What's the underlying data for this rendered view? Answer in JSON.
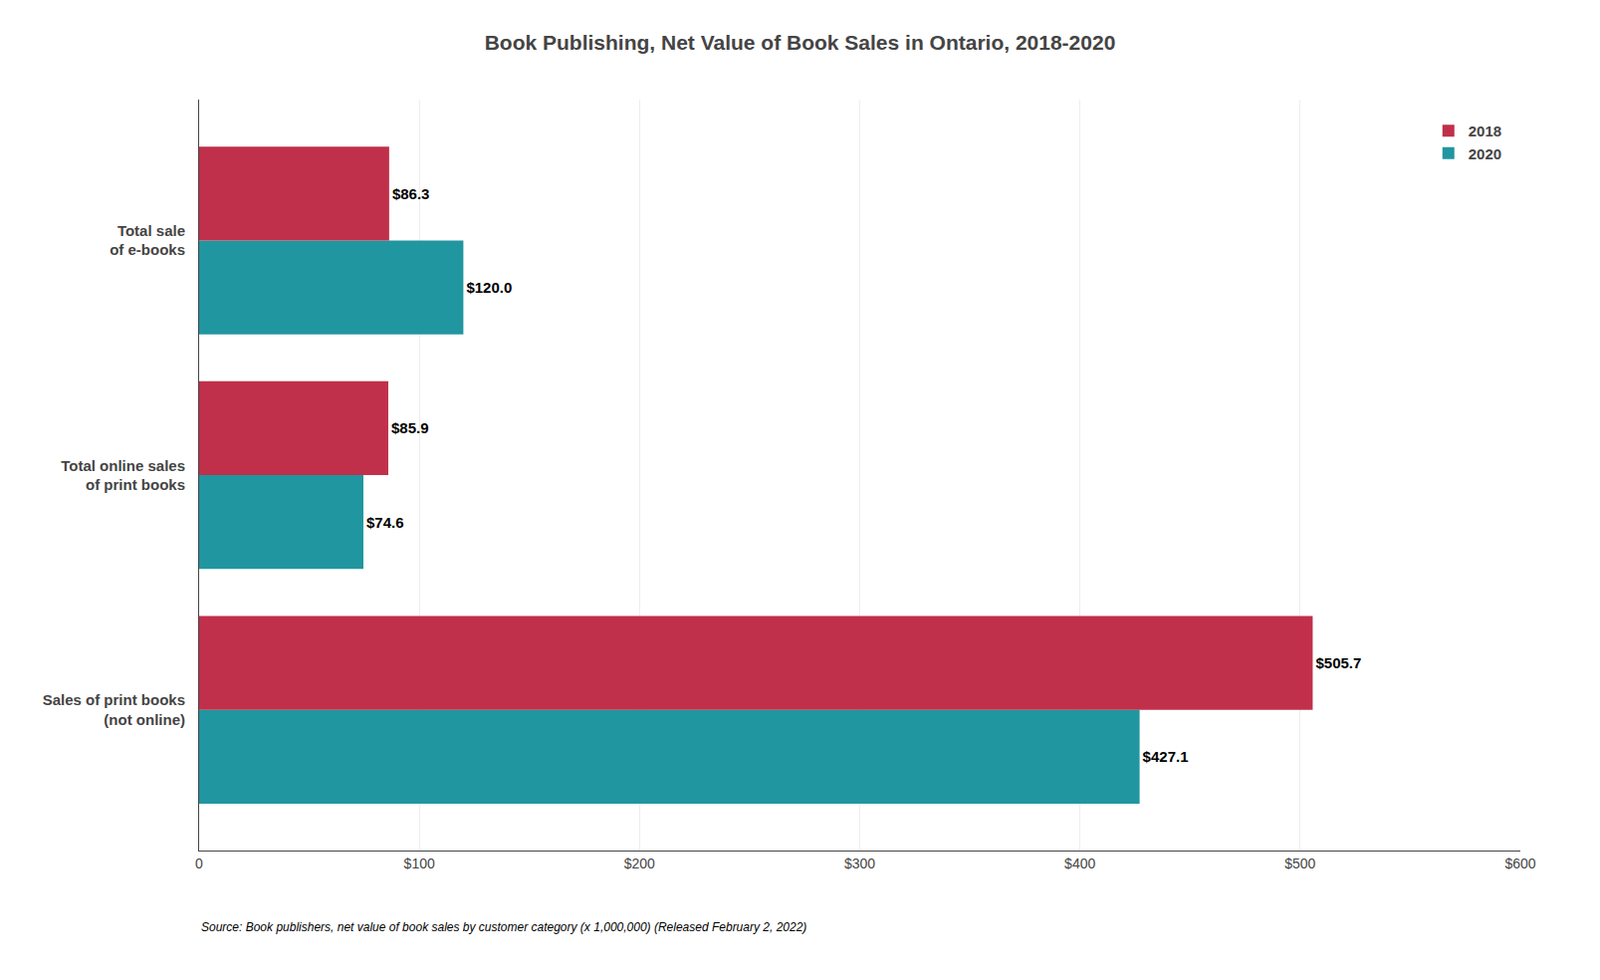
{
  "chart_data": {
    "type": "bar",
    "orientation": "horizontal",
    "title": "Book Publishing, Net Value of Book Sales in Ontario, 2018-2020",
    "categories": [
      "Sales of print books\n(not online)",
      "Total online sales\nof print books",
      "Total sale\nof e-books"
    ],
    "series": [
      {
        "name": "2020",
        "color": "#2096a0",
        "values": [
          427.1,
          74.6,
          120.0
        ],
        "value_labels": [
          "$427.1",
          "$74.6",
          "$120.0"
        ]
      },
      {
        "name": "2018",
        "color": "#c0304a",
        "values": [
          505.7,
          85.9,
          86.3
        ],
        "value_labels": [
          "$505.7",
          "$85.9",
          "$86.3"
        ]
      }
    ],
    "xlim": [
      0,
      600
    ],
    "xticks": [
      0,
      {
        "value": 100,
        "label": "$100"
      },
      {
        "value": 200,
        "label": "$200"
      },
      {
        "value": 300,
        "label": "$300"
      },
      {
        "value": 400,
        "label": "$400"
      },
      {
        "value": 500,
        "label": "$500"
      },
      {
        "value": 600,
        "label": "$600"
      }
    ],
    "grid": true,
    "legend": "upper right",
    "data_labels": true,
    "annotations": [
      "Source: Book publishers, net value of book sales by customer category (x 1,000,000) (Released February 2, 2022)"
    ]
  }
}
